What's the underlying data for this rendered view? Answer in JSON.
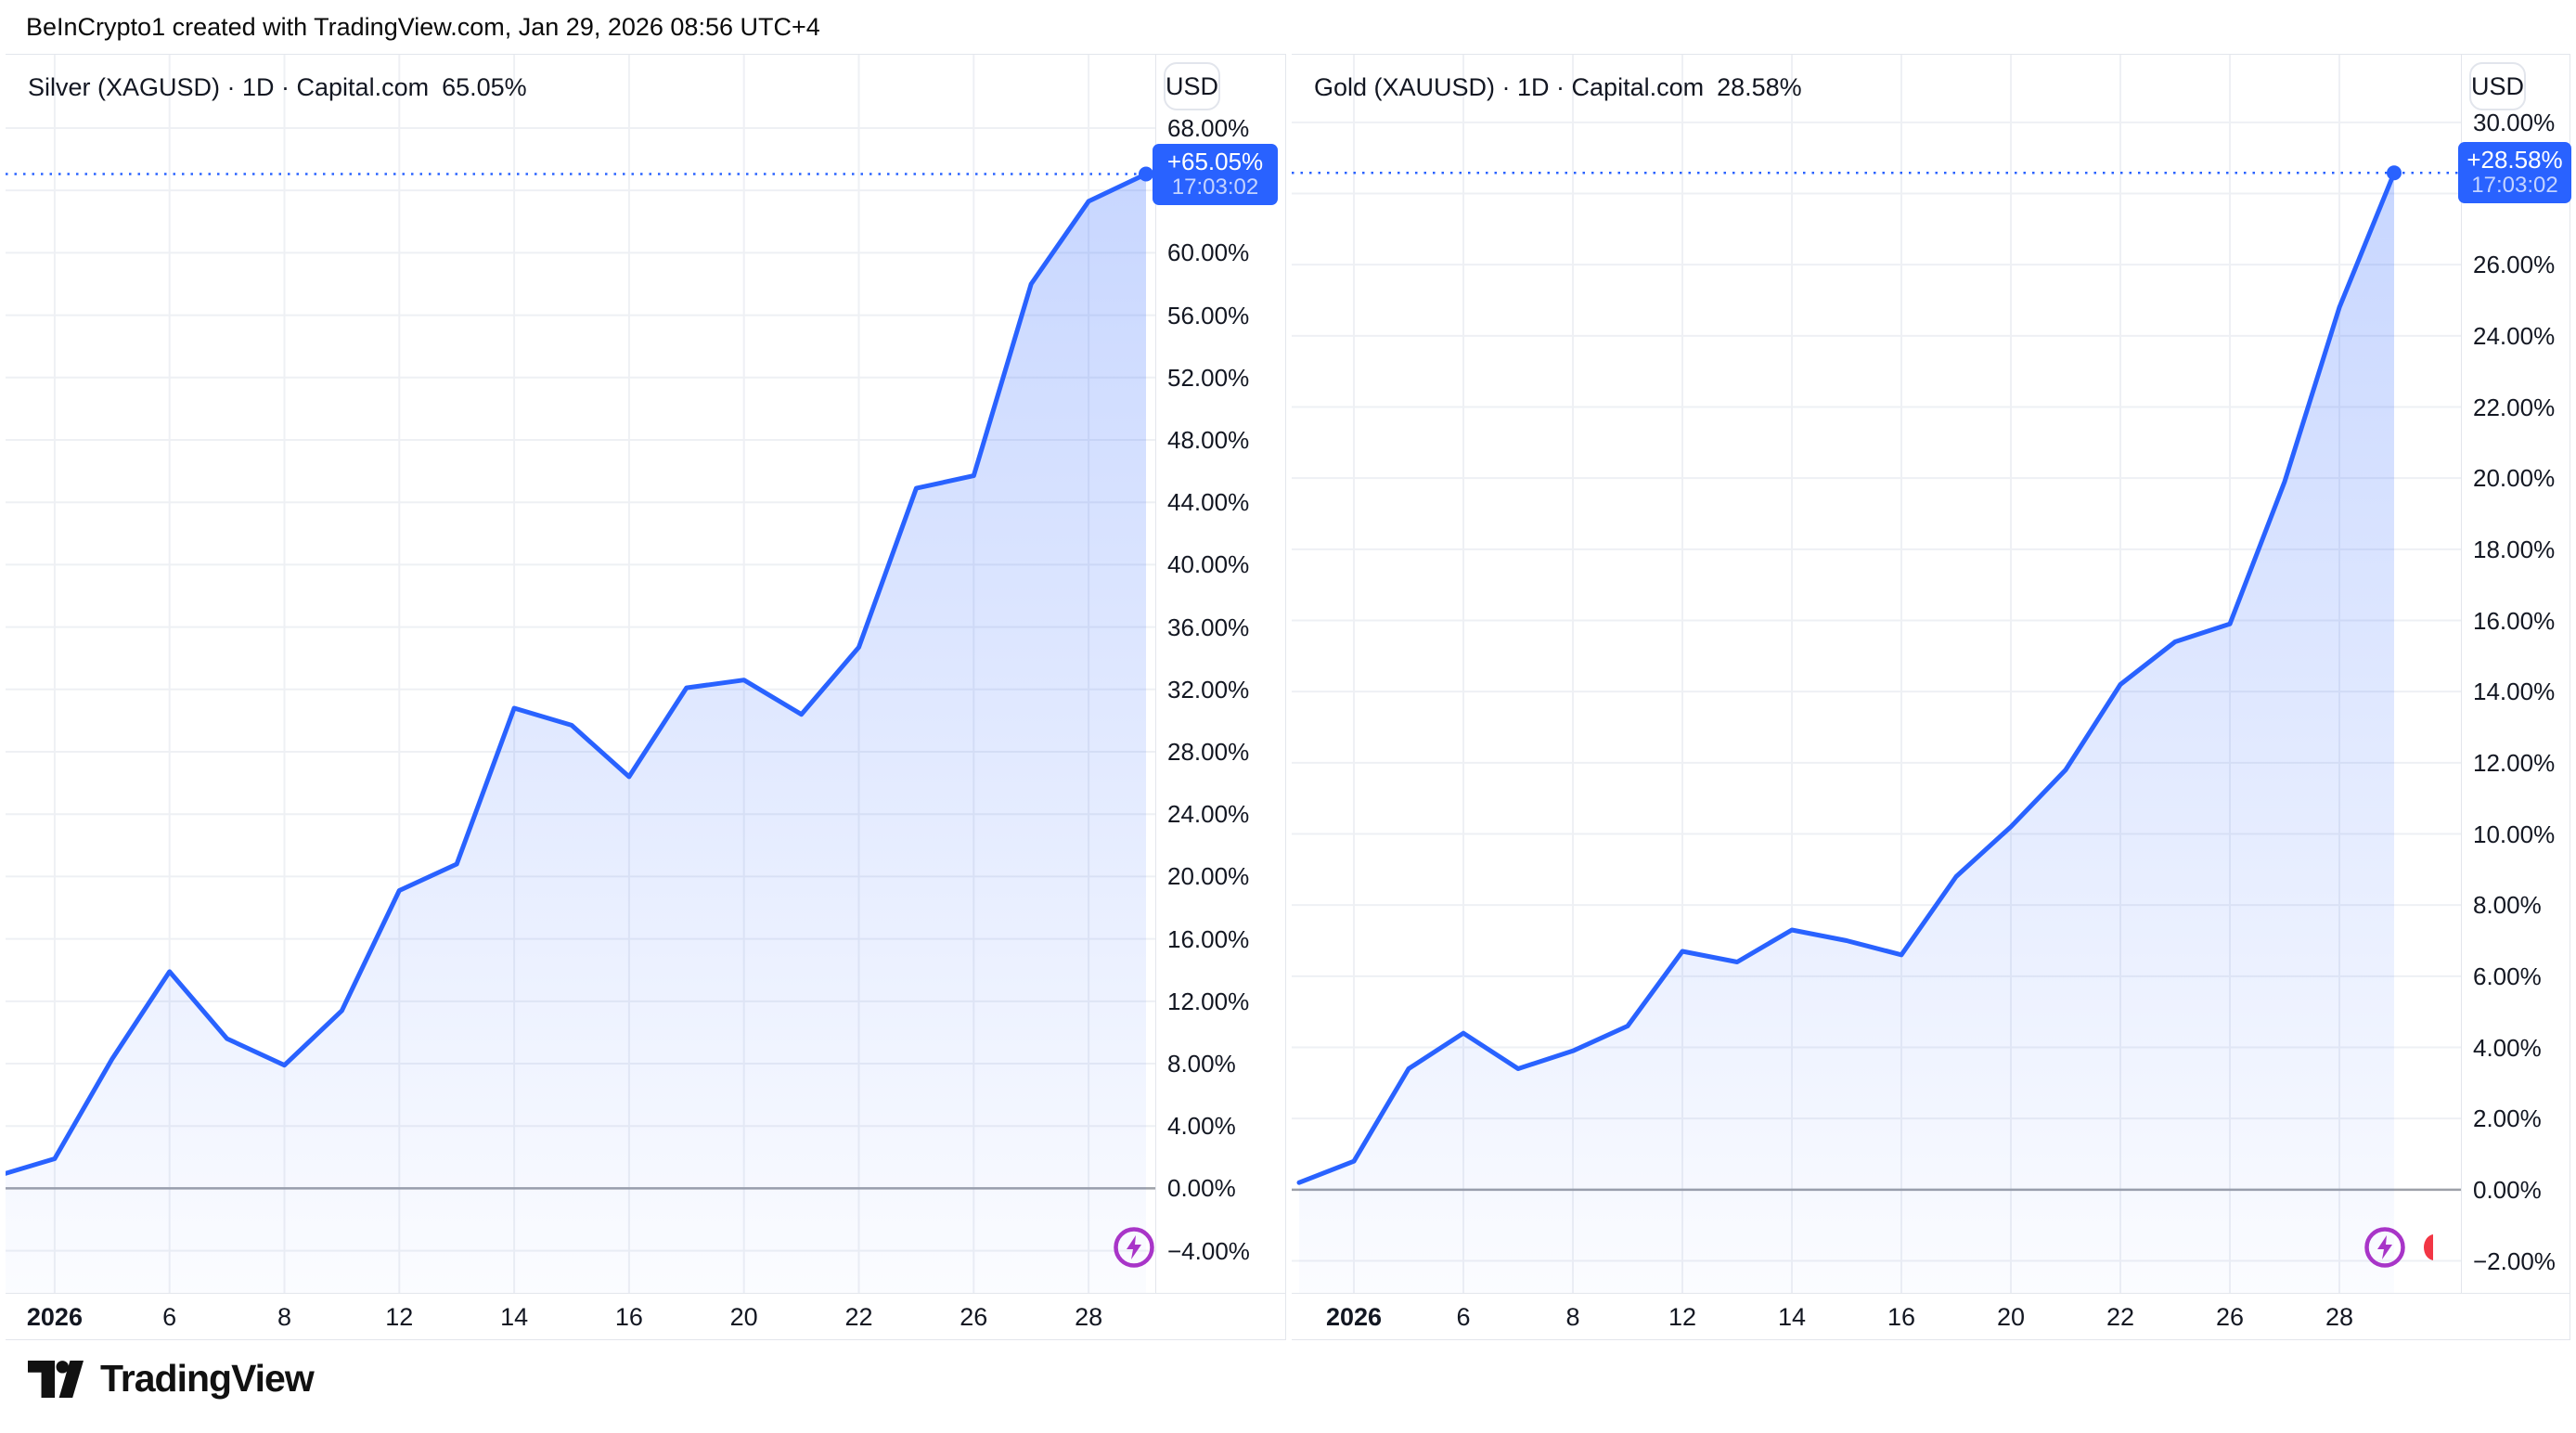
{
  "header": {
    "attribution": "BeInCrypto1 created with TradingView.com, Jan 29, 2026 08:56 UTC+4"
  },
  "footer": {
    "brand": "TradingView"
  },
  "colors": {
    "accent": "#2962FF",
    "grid": "#EEF0F4",
    "zero_line": "#9DA0A8",
    "axis_text": "#131722",
    "border": "#E3E6EC",
    "price_time_text": "rgba(255,255,255,0.72)",
    "flash_icon": "#A835C8",
    "red_fragment": "#F23645",
    "area_top": "rgba(41,98,255,0.26)",
    "area_bottom": "rgba(41,98,255,0.02)"
  },
  "chart_data": [
    {
      "type": "area",
      "title": "Silver (XAGUSD) · 1D · Capital.com",
      "change_label": "65.05%",
      "currency_button": "USD",
      "price_label": {
        "value": "+65.05%",
        "time": "17:03:02"
      },
      "x": [
        "Dec 31",
        "Jan 2",
        "Jan 5",
        "Jan 6",
        "Jan 7",
        "Jan 8",
        "Jan 9",
        "Jan 12",
        "Jan 13",
        "Jan 14",
        "Jan 15",
        "Jan 16",
        "Jan 19",
        "Jan 20",
        "Jan 21",
        "Jan 22",
        "Jan 23",
        "Jan 26",
        "Jan 27",
        "Jan 28",
        "Jan 29"
      ],
      "values": [
        0.8,
        1.9,
        8.3,
        13.9,
        9.6,
        7.9,
        11.4,
        19.1,
        20.8,
        30.8,
        29.7,
        26.4,
        32.1,
        32.6,
        30.4,
        34.7,
        44.9,
        45.7,
        58.0,
        63.3,
        65.05
      ],
      "last_value": 65.05,
      "xlabel": "",
      "ylabel": "%",
      "ylim": [
        -6.7,
        72.7
      ],
      "y_ticks": [
        68,
        64,
        60,
        56,
        52,
        48,
        44,
        40,
        36,
        32,
        28,
        24,
        20,
        16,
        12,
        8,
        4,
        0,
        -4
      ],
      "x_tick_labels": [
        "2026",
        "6",
        "8",
        "12",
        "14",
        "16",
        "20",
        "22",
        "26",
        "28"
      ],
      "x_tick_indices": [
        1,
        3,
        5,
        7,
        9,
        11,
        13,
        15,
        17,
        19
      ],
      "grid": true,
      "legend": "none"
    },
    {
      "type": "area",
      "title": "Gold (XAUUSD) · 1D · Capital.com",
      "change_label": "28.58%",
      "currency_button": "USD",
      "price_label": {
        "value": "+28.58%",
        "time": "17:03:02"
      },
      "x": [
        "Dec 31",
        "Jan 2",
        "Jan 5",
        "Jan 6",
        "Jan 7",
        "Jan 8",
        "Jan 9",
        "Jan 12",
        "Jan 13",
        "Jan 14",
        "Jan 15",
        "Jan 16",
        "Jan 19",
        "Jan 20",
        "Jan 21",
        "Jan 22",
        "Jan 23",
        "Jan 26",
        "Jan 27",
        "Jan 28",
        "Jan 29"
      ],
      "values": [
        0.2,
        0.8,
        3.4,
        4.4,
        3.4,
        3.9,
        4.6,
        6.7,
        6.4,
        7.3,
        7.0,
        6.6,
        8.8,
        10.2,
        11.8,
        14.2,
        15.4,
        15.9,
        19.9,
        24.8,
        28.58
      ],
      "last_value": 28.58,
      "xlabel": "",
      "ylabel": "%",
      "ylim": [
        -2.9,
        31.9
      ],
      "y_ticks": [
        30,
        28,
        26,
        24,
        22,
        20,
        18,
        16,
        14,
        12,
        10,
        8,
        6,
        4,
        2,
        0,
        -2
      ],
      "x_tick_labels": [
        "2026",
        "6",
        "8",
        "12",
        "14",
        "16",
        "20",
        "22",
        "26",
        "28"
      ],
      "x_tick_indices": [
        1,
        3,
        5,
        7,
        9,
        11,
        13,
        15,
        17,
        19
      ],
      "grid": true,
      "legend": "none"
    }
  ]
}
